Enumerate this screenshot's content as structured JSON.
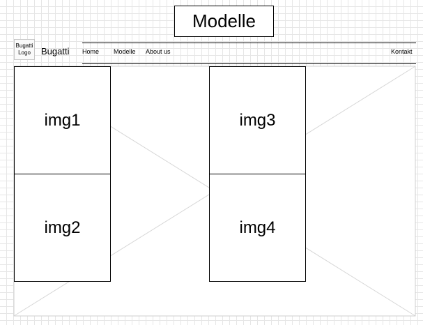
{
  "page": {
    "title": "Modelle"
  },
  "header": {
    "logo_label": "Bugatti Logo",
    "brand": "Bugatti",
    "nav": [
      {
        "label": "Home"
      },
      {
        "label": "Modelle"
      },
      {
        "label": "About us"
      },
      {
        "label": "Kontakt"
      }
    ]
  },
  "gallery": {
    "images": [
      {
        "label": "img1"
      },
      {
        "label": "img2"
      },
      {
        "label": "img3"
      },
      {
        "label": "img4"
      }
    ]
  }
}
